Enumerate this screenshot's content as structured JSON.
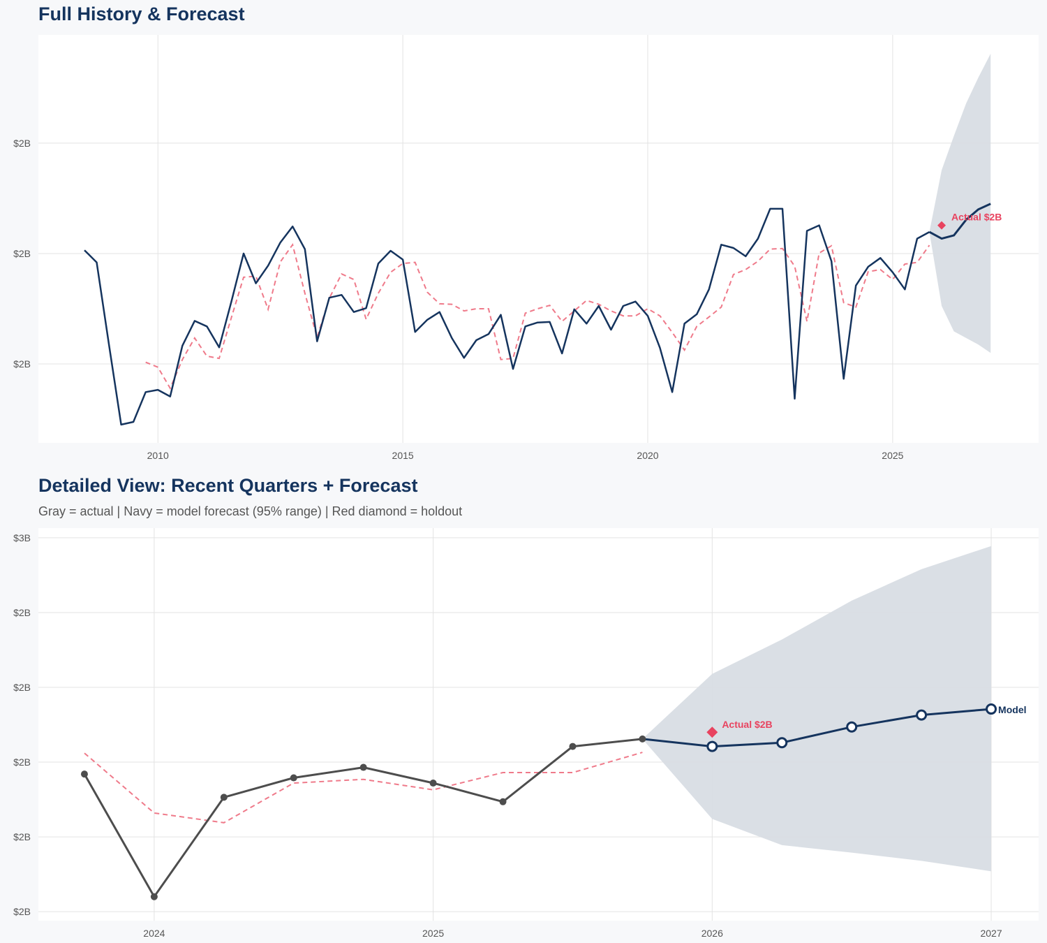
{
  "colors": {
    "navy": "#15345e",
    "red": "#e8435f",
    "gray": "#4d4d4d",
    "band": "#d8dde4",
    "grid": "#e3e3e3",
    "fit": "#ef7a8a"
  },
  "chart_data": [
    {
      "type": "line",
      "title": "Full History & Forecast",
      "xlim": [
        2007.56,
        2027.98
      ],
      "ylim": [
        1.857,
        2.596
      ],
      "grid": true,
      "xticks": [
        2010,
        2015,
        2020,
        2025
      ],
      "xtick_labels": [
        "2010",
        "2015",
        "2020",
        "2025"
      ],
      "yticks": [
        2.0,
        2.2,
        2.4
      ],
      "ytick_labels": [
        "$2B",
        "$2B",
        "$2B"
      ],
      "actual": {
        "x": [
          2008.5,
          2008.75,
          2009,
          2009.25,
          2009.5,
          2009.75,
          2010,
          2010.25,
          2010.5,
          2010.75,
          2011,
          2011.25,
          2011.5,
          2011.75,
          2012,
          2012.25,
          2012.5,
          2012.75,
          2013,
          2013.25,
          2013.5,
          2013.75,
          2014,
          2014.25,
          2014.5,
          2014.75,
          2015,
          2015.25,
          2015.5,
          2015.75,
          2016,
          2016.25,
          2016.5,
          2016.75,
          2017,
          2017.25,
          2017.5,
          2017.75,
          2018,
          2018.25,
          2018.5,
          2018.75,
          2019,
          2019.25,
          2019.5,
          2019.75,
          2020,
          2020.25,
          2020.5,
          2020.75,
          2021,
          2021.25,
          2021.5,
          2021.75,
          2022,
          2022.25,
          2022.5,
          2022.75,
          2023,
          2023.25,
          2023.5,
          2023.75,
          2024,
          2024.25,
          2024.5,
          2024.75,
          2025,
          2025.25,
          2025.5,
          2025.75
        ],
        "y": [
          2.206,
          2.184,
          2.035,
          1.89,
          1.895,
          1.949,
          1.953,
          1.941,
          2.033,
          2.078,
          2.068,
          2.03,
          2.113,
          2.2,
          2.146,
          2.178,
          2.22,
          2.249,
          2.208,
          2.041,
          2.12,
          2.125,
          2.094,
          2.101,
          2.182,
          2.205,
          2.189,
          2.058,
          2.08,
          2.094,
          2.047,
          2.011,
          2.043,
          2.054,
          2.089,
          1.991,
          2.068,
          2.075,
          2.076,
          2.019,
          2.099,
          2.073,
          2.105,
          2.062,
          2.105,
          2.113,
          2.087,
          2.029,
          1.949,
          2.073,
          2.09,
          2.135,
          2.216,
          2.21,
          2.195,
          2.227,
          2.281,
          2.281,
          1.937,
          2.241,
          2.251,
          2.186,
          1.973,
          2.142,
          2.176,
          2.192,
          2.166,
          2.135,
          2.227,
          2.239
        ]
      },
      "fit": {
        "x": [
          2009.75,
          2010,
          2010.25,
          2010.5,
          2010.75,
          2011,
          2011.25,
          2011.5,
          2011.75,
          2012,
          2012.25,
          2012.5,
          2012.75,
          2013,
          2013.25,
          2013.5,
          2013.75,
          2014,
          2014.25,
          2014.5,
          2014.75,
          2015,
          2015.25,
          2015.5,
          2015.75,
          2016,
          2016.25,
          2016.5,
          2016.75,
          2017,
          2017.25,
          2017.5,
          2017.75,
          2018,
          2018.25,
          2018.5,
          2018.75,
          2019,
          2019.25,
          2019.5,
          2019.75,
          2020,
          2020.25,
          2020.5,
          2020.75,
          2021,
          2021.25,
          2021.5,
          2021.75,
          2022,
          2022.25,
          2022.5,
          2022.75,
          2023,
          2023.25,
          2023.5,
          2023.75,
          2024,
          2024.25,
          2024.5,
          2024.75,
          2025,
          2025.25,
          2025.5,
          2025.75
        ],
        "y": [
          2.003,
          1.994,
          1.956,
          2.008,
          2.047,
          2.014,
          2.01,
          2.084,
          2.157,
          2.159,
          2.099,
          2.185,
          2.216,
          2.128,
          2.048,
          2.119,
          2.163,
          2.153,
          2.081,
          2.128,
          2.166,
          2.182,
          2.184,
          2.13,
          2.109,
          2.108,
          2.096,
          2.1,
          2.1,
          2.008,
          2.01,
          2.092,
          2.1,
          2.106,
          2.077,
          2.096,
          2.115,
          2.108,
          2.096,
          2.087,
          2.087,
          2.1,
          2.087,
          2.057,
          2.025,
          2.068,
          2.085,
          2.103,
          2.162,
          2.171,
          2.186,
          2.208,
          2.209,
          2.177,
          2.077,
          2.201,
          2.214,
          2.111,
          2.103,
          2.167,
          2.171,
          2.153,
          2.181,
          2.184,
          2.215
        ]
      },
      "forecast": {
        "x": [
          2025.75,
          2026,
          2026.25,
          2026.5,
          2026.75,
          2027
        ],
        "y": [
          2.239,
          2.227,
          2.233,
          2.261,
          2.28,
          2.29
        ]
      },
      "band": {
        "x": [
          2025.75,
          2026,
          2026.25,
          2026.5,
          2026.75,
          2027
        ],
        "upper": [
          2.239,
          2.351,
          2.413,
          2.472,
          2.519,
          2.562
        ],
        "lower": [
          2.239,
          2.105,
          2.059,
          2.047,
          2.035,
          2.02
        ]
      },
      "holdout": {
        "x": 2026,
        "y": 2.251,
        "label": "Actual $2B"
      }
    },
    {
      "type": "line",
      "title": "Detailed View: Recent Quarters + Forecast",
      "subtitle": "Gray = actual  |  Navy = model forecast (95% range)  |  Red diamond = holdout",
      "xlim": [
        2023.585,
        2027.17
      ],
      "ylim": [
        1.988,
        2.513
      ],
      "grid": true,
      "xticks": [
        2024,
        2025,
        2026,
        2027
      ],
      "xtick_labels": [
        "2024",
        "2025",
        "2026",
        "2027"
      ],
      "yticks": [
        2.0,
        2.1,
        2.2,
        2.3,
        2.4,
        2.5
      ],
      "ytick_labels": [
        "$2B",
        "$2B",
        "$2B",
        "$2B",
        "$2B",
        "$3B"
      ],
      "actual": {
        "x": [
          2023.75,
          2024,
          2024.25,
          2024.5,
          2024.75,
          2025,
          2025.25,
          2025.5,
          2025.75
        ],
        "y": [
          2.184,
          2.02,
          2.153,
          2.179,
          2.193,
          2.172,
          2.147,
          2.221,
          2.231
        ]
      },
      "fit": {
        "x": [
          2023.75,
          2024,
          2024.25,
          2024.5,
          2024.75,
          2025,
          2025.25,
          2025.5,
          2025.75
        ],
        "y": [
          2.212,
          2.132,
          2.119,
          2.172,
          2.177,
          2.163,
          2.186,
          2.186,
          2.213
        ]
      },
      "forecast": {
        "x": [
          2025.75,
          2026,
          2026.25,
          2026.5,
          2026.75,
          2027
        ],
        "y": [
          2.231,
          2.221,
          2.226,
          2.247,
          2.263,
          2.271
        ],
        "label": "Model"
      },
      "band": {
        "x": [
          2025.75,
          2026,
          2026.25,
          2026.5,
          2026.75,
          2027
        ],
        "upper": [
          2.231,
          2.318,
          2.364,
          2.416,
          2.458,
          2.489
        ],
        "lower": [
          2.231,
          2.124,
          2.089,
          2.079,
          2.068,
          2.054
        ]
      },
      "holdout": {
        "x": 2026,
        "y": 2.24,
        "label": "Actual $2B"
      }
    }
  ]
}
